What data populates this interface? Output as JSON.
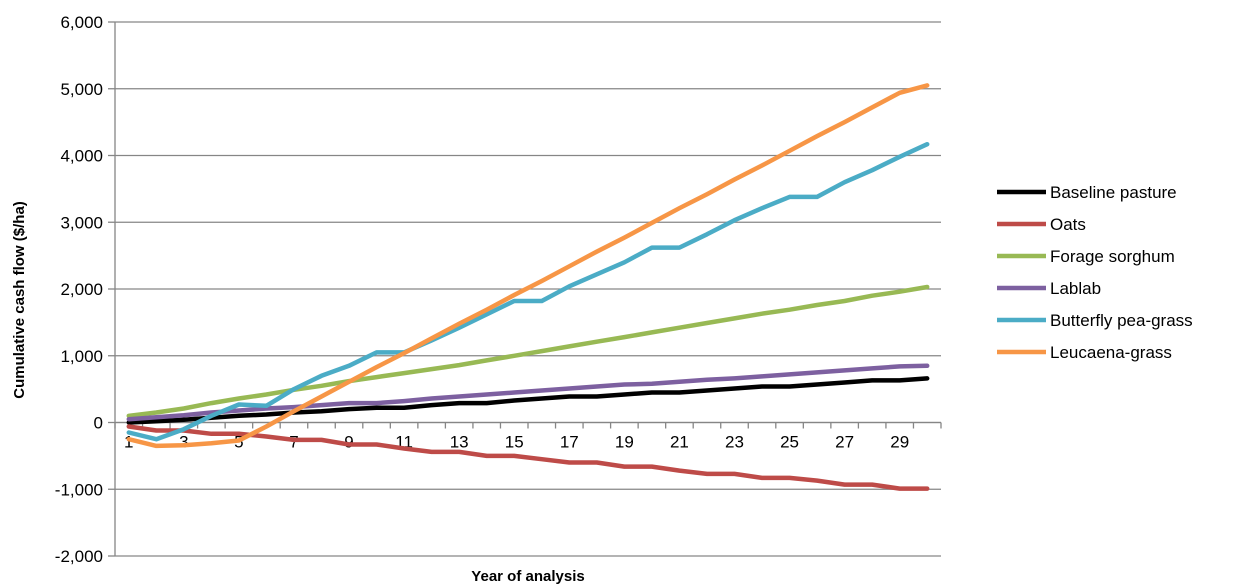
{
  "chart_data": {
    "type": "line",
    "title": "",
    "xlabel": "Year of analysis",
    "ylabel": "Cumulative cash flow ($/ha)",
    "ylim": [
      -2000,
      6000
    ],
    "y_ticks": [
      -2000,
      -1000,
      0,
      1000,
      2000,
      3000,
      4000,
      5000,
      6000
    ],
    "y_tick_labels": [
      "-2,000",
      "-1,000",
      "0",
      "1,000",
      "2,000",
      "3,000",
      "4,000",
      "5,000",
      "6,000"
    ],
    "x": [
      1,
      2,
      3,
      4,
      5,
      6,
      7,
      8,
      9,
      10,
      11,
      12,
      13,
      14,
      15,
      16,
      17,
      18,
      19,
      20,
      21,
      22,
      23,
      24,
      25,
      26,
      27,
      28,
      29,
      30
    ],
    "x_tick_labels": [
      "1",
      "3",
      "5",
      "7",
      "9",
      "11",
      "13",
      "15",
      "17",
      "19",
      "21",
      "23",
      "25",
      "27",
      "29"
    ],
    "grid": true,
    "legend_position": "right",
    "series": [
      {
        "name": "Baseline pasture",
        "color": "#000000",
        "values": [
          0,
          20,
          40,
          70,
          100,
          120,
          150,
          170,
          200,
          220,
          220,
          260,
          290,
          290,
          330,
          360,
          390,
          390,
          420,
          450,
          450,
          480,
          510,
          540,
          540,
          570,
          600,
          630,
          630,
          660
        ]
      },
      {
        "name": "Oats",
        "color": "#be4b48",
        "values": [
          -60,
          -120,
          -120,
          -170,
          -170,
          -210,
          -260,
          -260,
          -330,
          -330,
          -390,
          -440,
          -440,
          -500,
          -500,
          -550,
          -600,
          -600,
          -660,
          -660,
          -720,
          -770,
          -770,
          -830,
          -830,
          -870,
          -930,
          -930,
          -990,
          -990
        ]
      },
      {
        "name": "Forage sorghum",
        "color": "#98b954",
        "values": [
          100,
          150,
          210,
          290,
          360,
          420,
          490,
          550,
          620,
          680,
          740,
          800,
          860,
          930,
          1000,
          1070,
          1140,
          1210,
          1280,
          1350,
          1420,
          1490,
          1560,
          1630,
          1690,
          1760,
          1820,
          1900,
          1960,
          2030
        ]
      },
      {
        "name": "Lablab",
        "color": "#7d60a0",
        "values": [
          50,
          80,
          110,
          150,
          180,
          210,
          230,
          260,
          290,
          290,
          320,
          360,
          390,
          420,
          450,
          480,
          510,
          540,
          570,
          580,
          610,
          640,
          660,
          690,
          720,
          750,
          780,
          810,
          840,
          850
        ]
      },
      {
        "name": "Butterfly pea-grass",
        "color": "#4bacc6",
        "values": [
          -150,
          -250,
          -100,
          100,
          270,
          250,
          500,
          700,
          850,
          1050,
          1050,
          1230,
          1420,
          1620,
          1820,
          1820,
          2040,
          2220,
          2400,
          2620,
          2620,
          2820,
          3030,
          3210,
          3380,
          3380,
          3600,
          3780,
          3980,
          4170
        ]
      },
      {
        "name": "Leucaena-grass",
        "color": "#f79646",
        "values": [
          -250,
          -350,
          -340,
          -310,
          -270,
          -60,
          170,
          390,
          610,
          830,
          1040,
          1260,
          1480,
          1690,
          1910,
          2120,
          2340,
          2560,
          2770,
          2990,
          3210,
          3420,
          3640,
          3850,
          4070,
          4290,
          4500,
          4720,
          4940,
          5050
        ]
      }
    ]
  }
}
